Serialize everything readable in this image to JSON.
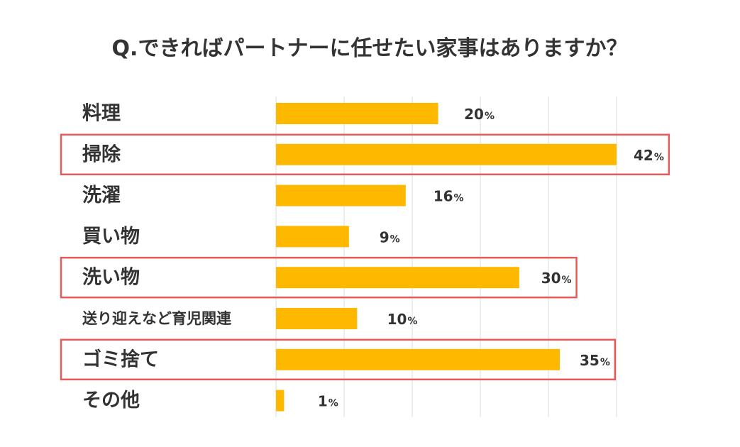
{
  "title": "Q.できればパートナーに任せたい家事はありますか？",
  "colors": {
    "bar": "#FFB800",
    "highlight": "#E85A5A",
    "grid": "#DDDDDD",
    "text": "#333333"
  },
  "chart_data": {
    "type": "bar",
    "orientation": "horizontal",
    "categories": [
      "料理",
      "掃除",
      "洗濯",
      "買い物",
      "洗い物",
      "送り迎えなど育児関連",
      "ゴミ捨て",
      "その他"
    ],
    "values": [
      20,
      42,
      16,
      9,
      30,
      10,
      35,
      1
    ],
    "value_labels": [
      "20",
      "42",
      "16",
      "9",
      "30",
      "10",
      "35",
      "1"
    ],
    "unit": "%",
    "highlighted": [
      "掃除",
      "洗い物",
      "ゴミ捨て"
    ],
    "xlim": [
      0,
      42
    ],
    "grid": true,
    "legend": "none"
  }
}
